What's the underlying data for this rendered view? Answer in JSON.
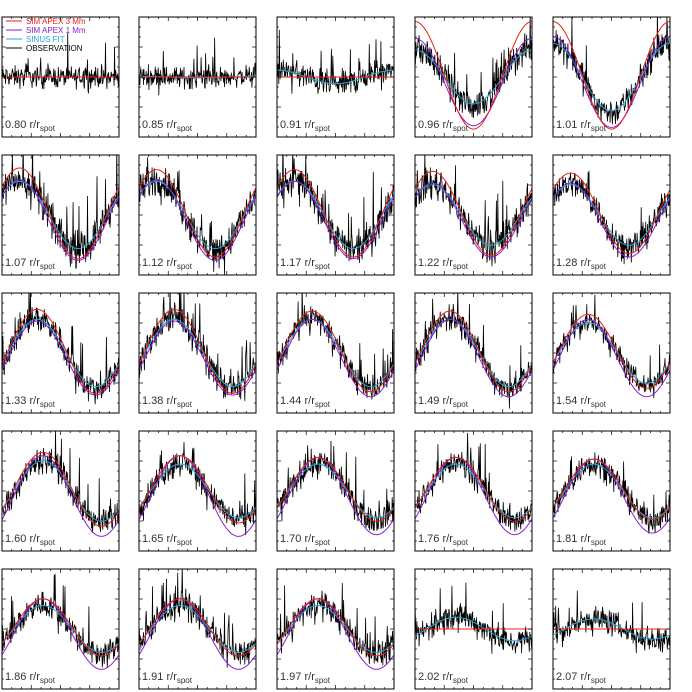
{
  "colors": {
    "sim3": "#e8201a",
    "sim1": "#8a1fd6",
    "sinus": "#2aa6dc",
    "obs": "#000000",
    "frame": "#000000"
  },
  "legend": [
    {
      "label": "SIM APEX 3 Mm",
      "color": "#e8201a"
    },
    {
      "label": "SIM APEX 1 Mm",
      "color": "#8a1fd6"
    },
    {
      "label": "SINUS FIT",
      "color": "#2aa6dc"
    },
    {
      "label": "OBSERVATION",
      "color": "#000000"
    }
  ],
  "label_unit": "r/r",
  "label_unit_sub": "spot",
  "chart_data": {
    "type": "line",
    "layout": "small-multiples",
    "series_names": [
      "SIM APEX 3 Mm",
      "SIM APEX 1 Mm",
      "SINUS FIT",
      "OBSERVATION"
    ],
    "panels": [
      {
        "r": "0.80",
        "sim3_amp": 0.0,
        "sim1_amp": 0.0,
        "sinus_amp": 0.0,
        "phase": 0.0,
        "noise": 0.45,
        "flat": true
      },
      {
        "r": "0.85",
        "sim3_amp": 0.0,
        "sim1_amp": 0.0,
        "sinus_amp": 0.02,
        "phase": 0.0,
        "noise": 0.45,
        "flat": true
      },
      {
        "r": "0.91",
        "sim3_amp": 0.0,
        "sim1_amp": 0.0,
        "sinus_amp": 0.2,
        "phase": 0.0,
        "noise": 0.55,
        "flat": true
      },
      {
        "r": "0.96",
        "sim3_amp": 1.6,
        "sim1_amp": 1.3,
        "sinus_amp": 0.8,
        "phase": 0.0,
        "noise": 0.6,
        "flat": false
      },
      {
        "r": "1.01",
        "sim3_amp": 1.6,
        "sim1_amp": 1.35,
        "sinus_amp": 1.0,
        "phase": 0.0,
        "noise": 0.6,
        "flat": false
      },
      {
        "r": "1.07",
        "sim3_amp": 1.35,
        "sim1_amp": 1.2,
        "sinus_amp": 1.0,
        "phase": 0.15,
        "noise": 0.7,
        "flat": false
      },
      {
        "r": "1.12",
        "sim3_amp": 1.3,
        "sim1_amp": 1.2,
        "sinus_amp": 1.0,
        "phase": 0.15,
        "noise": 0.7,
        "flat": false
      },
      {
        "r": "1.17",
        "sim3_amp": 1.3,
        "sim1_amp": 1.15,
        "sinus_amp": 1.0,
        "phase": 0.15,
        "noise": 0.7,
        "flat": false
      },
      {
        "r": "1.22",
        "sim3_amp": 1.25,
        "sim1_amp": 1.1,
        "sinus_amp": 0.9,
        "phase": 0.15,
        "noise": 0.7,
        "flat": false
      },
      {
        "r": "1.28",
        "sim3_amp": 1.2,
        "sim1_amp": 1.1,
        "sinus_amp": 0.9,
        "phase": 0.15,
        "noise": 0.6,
        "flat": false
      },
      {
        "r": "1.33",
        "sim3_amp": 1.25,
        "sim1_amp": 1.1,
        "sinus_amp": 1.0,
        "phase": 0.3,
        "noise": 0.6,
        "flat": false
      },
      {
        "r": "1.38",
        "sim3_amp": 1.25,
        "sim1_amp": 1.1,
        "sinus_amp": 1.0,
        "phase": 0.3,
        "noise": 0.6,
        "flat": false
      },
      {
        "r": "1.44",
        "sim3_amp": 1.2,
        "sim1_amp": 1.15,
        "sinus_amp": 1.0,
        "phase": 0.3,
        "noise": 0.55,
        "flat": false
      },
      {
        "r": "1.49",
        "sim3_amp": 1.2,
        "sim1_amp": 1.15,
        "sinus_amp": 1.0,
        "phase": 0.3,
        "noise": 0.55,
        "flat": false
      },
      {
        "r": "1.54",
        "sim3_amp": 1.1,
        "sim1_amp": 1.15,
        "sinus_amp": 0.9,
        "phase": 0.3,
        "noise": 0.5,
        "flat": false
      },
      {
        "r": "1.60",
        "sim3_amp": 1.1,
        "sim1_amp": 1.2,
        "sinus_amp": 0.9,
        "phase": 0.35,
        "noise": 0.55,
        "flat": false
      },
      {
        "r": "1.65",
        "sim3_amp": 1.0,
        "sim1_amp": 1.2,
        "sinus_amp": 0.8,
        "phase": 0.35,
        "noise": 0.55,
        "flat": false
      },
      {
        "r": "1.70",
        "sim3_amp": 0.95,
        "sim1_amp": 1.15,
        "sinus_amp": 0.8,
        "phase": 0.35,
        "noise": 0.55,
        "flat": false
      },
      {
        "r": "1.76",
        "sim3_amp": 0.95,
        "sim1_amp": 1.15,
        "sinus_amp": 0.8,
        "phase": 0.35,
        "noise": 0.55,
        "flat": false
      },
      {
        "r": "1.81",
        "sim3_amp": 0.9,
        "sim1_amp": 1.1,
        "sinus_amp": 0.8,
        "phase": 0.35,
        "noise": 0.55,
        "flat": false
      },
      {
        "r": "1.86",
        "sim3_amp": 0.85,
        "sim1_amp": 1.05,
        "sinus_amp": 0.7,
        "phase": 0.35,
        "noise": 0.55,
        "flat": false
      },
      {
        "r": "1.91",
        "sim3_amp": 0.85,
        "sim1_amp": 1.05,
        "sinus_amp": 0.7,
        "phase": 0.35,
        "noise": 0.55,
        "flat": false
      },
      {
        "r": "1.97",
        "sim3_amp": 0.85,
        "sim1_amp": 1.05,
        "sinus_amp": 0.7,
        "phase": 0.35,
        "noise": 0.55,
        "flat": false
      },
      {
        "r": "2.02",
        "sim3_amp": 0.0,
        "sim1_amp": 0.0,
        "sinus_amp": 0.35,
        "phase": 0.35,
        "noise": 0.55,
        "flat": true
      },
      {
        "r": "2.07",
        "sim3_amp": 0.0,
        "sim1_amp": 0.0,
        "sinus_amp": 0.3,
        "phase": 0.35,
        "noise": 0.55,
        "flat": true
      }
    ]
  }
}
